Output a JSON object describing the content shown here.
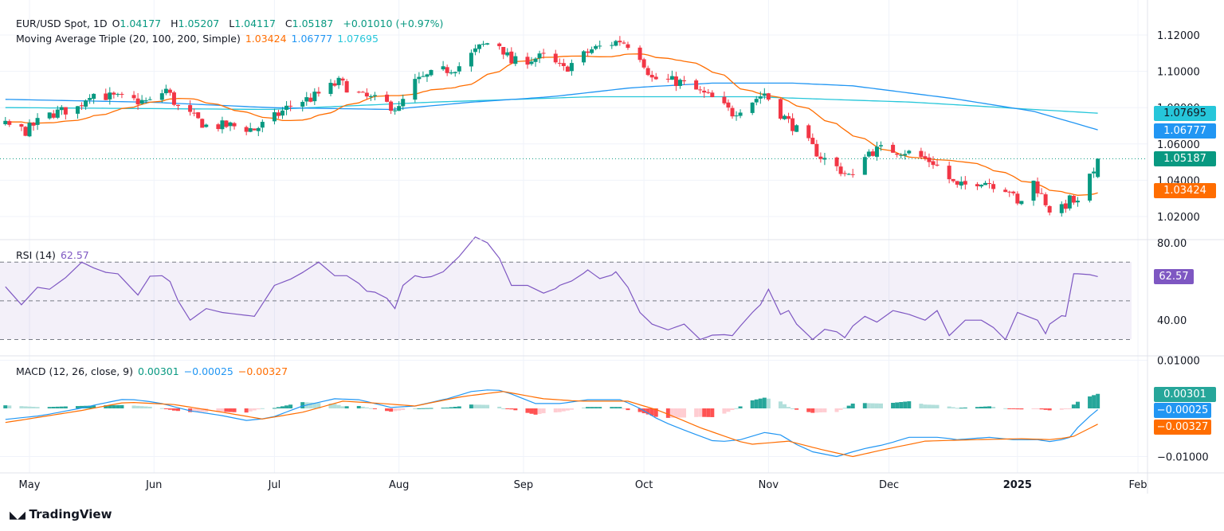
{
  "header": {
    "symbol": "EUR/USD Spot, 1D",
    "o_label": "O",
    "open": "1.04177",
    "h_label": "H",
    "high": "1.05207",
    "l_label": "L",
    "low": "1.04117",
    "c_label": "C",
    "close": "1.05187",
    "change": "+0.01010 (+0.97%)"
  },
  "ma_legend": {
    "title": "Moving Average Triple (20, 100, 200, Simple)",
    "ma20": "1.03424",
    "ma100": "1.06777",
    "ma200": "1.07695"
  },
  "rsi_legend": {
    "title": "RSI (14)",
    "value": "62.57"
  },
  "macd_legend": {
    "title": "MACD (12, 26, close, 9)",
    "hist": "0.00301",
    "macd": "−0.00025",
    "signal": "−0.00327"
  },
  "colors": {
    "up": "#089981",
    "down": "#f23645",
    "ma20": "#ff6d00",
    "ma100": "#2196f3",
    "ma200": "#26c6da",
    "rsi": "#7e57c2",
    "hist_up": "#26a69a",
    "hist_down": "#ff5252"
  },
  "footer": {
    "brand": "TradingView"
  },
  "chart_data": [
    {
      "type": "candlestick",
      "title": "EUR/USD Spot, 1D",
      "x_unit": "calendar days from 2024-05-01",
      "yticks": [
        "1.12000",
        "1.10000",
        "1.08000",
        "1.06000",
        "1.04000",
        "1.02000"
      ],
      "ylim": [
        1.012,
        1.125
      ],
      "xticks": [
        {
          "d": 0,
          "label": "May"
        },
        {
          "d": 31,
          "label": "Jun"
        },
        {
          "d": 61,
          "label": "Jul"
        },
        {
          "d": 92,
          "label": "Aug"
        },
        {
          "d": 123,
          "label": "Sep"
        },
        {
          "d": 153,
          "label": "Oct"
        },
        {
          "d": 184,
          "label": "Nov"
        },
        {
          "d": 214,
          "label": "Dec"
        },
        {
          "d": 246,
          "label": "2025"
        },
        {
          "d": 276,
          "label": "Feb"
        }
      ],
      "close_anchors": [
        [
          -30,
          1.072
        ],
        [
          -5,
          1.07
        ],
        [
          -1,
          1.067
        ],
        [
          2,
          1.072
        ],
        [
          6,
          1.077
        ],
        [
          12,
          1.08
        ],
        [
          15,
          1.088
        ],
        [
          20,
          1.086
        ],
        [
          25,
          1.084
        ],
        [
          30,
          1.083
        ],
        [
          34,
          1.09
        ],
        [
          37,
          1.08
        ],
        [
          44,
          1.07
        ],
        [
          50,
          1.07
        ],
        [
          56,
          1.068
        ],
        [
          60,
          1.073
        ],
        [
          66,
          1.083
        ],
        [
          70,
          1.085
        ],
        [
          77,
          1.094
        ],
        [
          83,
          1.086
        ],
        [
          88,
          1.083
        ],
        [
          92,
          1.079
        ],
        [
          95,
          1.093
        ],
        [
          100,
          1.098
        ],
        [
          107,
          1.103
        ],
        [
          112,
          1.113
        ],
        [
          116,
          1.118
        ],
        [
          120,
          1.105
        ],
        [
          128,
          1.108
        ],
        [
          133,
          1.101
        ],
        [
          140,
          1.112
        ],
        [
          147,
          1.117
        ],
        [
          151,
          1.113
        ],
        [
          155,
          1.096
        ],
        [
          162,
          1.094
        ],
        [
          170,
          1.085
        ],
        [
          175,
          1.077
        ],
        [
          183,
          1.088
        ],
        [
          186,
          1.079
        ],
        [
          190,
          1.07
        ],
        [
          197,
          1.053
        ],
        [
          205,
          1.041
        ],
        [
          208,
          1.055
        ],
        [
          212,
          1.057
        ],
        [
          218,
          1.056
        ],
        [
          225,
          1.05
        ],
        [
          231,
          1.036
        ],
        [
          237,
          1.04
        ],
        [
          244,
          1.035
        ],
        [
          246,
          1.026
        ],
        [
          250,
          1.039
        ],
        [
          254,
          1.024
        ],
        [
          257,
          1.024
        ],
        [
          259,
          1.029
        ],
        [
          261,
          1.027
        ],
        [
          263,
          1.041
        ],
        [
          265,
          1.042
        ],
        [
          266,
          1.05187
        ]
      ],
      "last_candle": {
        "open": 1.04177,
        "high": 1.05207,
        "low": 1.04117,
        "close": 1.05187
      },
      "ma100": [
        [
          -5,
          1.0845
        ],
        [
          30,
          1.083
        ],
        [
          60,
          1.08
        ],
        [
          90,
          1.079
        ],
        [
          110,
          1.083
        ],
        [
          130,
          1.086
        ],
        [
          150,
          1.091
        ],
        [
          170,
          1.0935
        ],
        [
          190,
          1.0935
        ],
        [
          205,
          1.092
        ],
        [
          230,
          1.085
        ],
        [
          250,
          1.078
        ],
        [
          266,
          1.06777
        ]
      ],
      "ma200": [
        [
          -5,
          1.08
        ],
        [
          60,
          1.079
        ],
        [
          100,
          1.083
        ],
        [
          140,
          1.086
        ],
        [
          180,
          1.086
        ],
        [
          220,
          1.083
        ],
        [
          250,
          1.079
        ],
        [
          266,
          1.07695
        ]
      ],
      "ma20_last": 1.03424
    },
    {
      "type": "line",
      "title": "RSI (14)",
      "yticks": [
        "80.00",
        "40.00"
      ],
      "bands": [
        70,
        50,
        30
      ],
      "ylim": [
        20,
        80
      ],
      "points": [
        [
          -5,
          55
        ],
        [
          -2,
          48
        ],
        [
          2,
          57
        ],
        [
          5,
          56
        ],
        [
          9,
          62
        ],
        [
          13,
          70
        ],
        [
          18,
          65
        ],
        [
          22,
          64
        ],
        [
          27,
          53
        ],
        [
          31,
          66
        ],
        [
          35,
          60
        ],
        [
          38,
          45
        ],
        [
          40,
          40
        ],
        [
          44,
          46
        ],
        [
          48,
          44
        ],
        [
          52,
          43
        ],
        [
          56,
          42
        ],
        [
          61,
          58
        ],
        [
          66,
          62
        ],
        [
          72,
          70
        ],
        [
          76,
          63
        ],
        [
          80,
          63
        ],
        [
          84,
          55
        ],
        [
          88,
          54
        ],
        [
          91,
          46
        ],
        [
          94,
          64
        ],
        [
          98,
          62
        ],
        [
          102,
          63
        ],
        [
          107,
          73
        ],
        [
          111,
          83
        ],
        [
          114,
          80
        ],
        [
          117,
          72
        ],
        [
          120,
          58
        ],
        [
          124,
          58
        ],
        [
          129,
          53
        ],
        [
          132,
          58
        ],
        [
          136,
          61
        ],
        [
          139,
          66
        ],
        [
          143,
          60
        ],
        [
          146,
          65
        ],
        [
          149,
          57
        ],
        [
          151,
          46
        ],
        [
          155,
          38
        ],
        [
          159,
          35
        ],
        [
          163,
          38
        ],
        [
          167,
          30
        ],
        [
          171,
          33
        ],
        [
          175,
          32
        ],
        [
          179,
          42
        ],
        [
          182,
          48
        ],
        [
          185,
          60
        ],
        [
          186,
          42
        ],
        [
          189,
          45
        ],
        [
          191,
          38
        ],
        [
          195,
          30
        ],
        [
          199,
          37
        ],
        [
          203,
          31
        ],
        [
          207,
          43
        ],
        [
          211,
          39
        ],
        [
          215,
          45
        ],
        [
          219,
          43
        ],
        [
          223,
          40
        ],
        [
          226,
          45
        ],
        [
          229,
          32
        ],
        [
          233,
          40
        ],
        [
          237,
          40
        ],
        [
          241,
          35
        ],
        [
          243,
          30
        ],
        [
          246,
          44
        ],
        [
          251,
          40
        ],
        [
          253,
          33
        ],
        [
          255,
          43
        ],
        [
          258,
          42
        ],
        [
          260,
          64
        ],
        [
          263,
          64
        ],
        [
          266,
          62.57
        ]
      ]
    },
    {
      "type": "line",
      "title": "MACD (12, 26, close, 9)",
      "yticks": [
        "0.01000",
        "-0.01000"
      ],
      "ylim": [
        -0.012,
        0.012
      ],
      "macd": [
        [
          -5,
          -0.0022
        ],
        [
          3,
          -0.0015
        ],
        [
          12.5,
          0
        ],
        [
          18,
          0.001
        ],
        [
          24,
          0.002
        ],
        [
          32,
          0.0012
        ],
        [
          40,
          -0.0005
        ],
        [
          48,
          -0.0015
        ],
        [
          54,
          -0.0025
        ],
        [
          60,
          -0.002
        ],
        [
          68,
          0.0005
        ],
        [
          76,
          0.002
        ],
        [
          82,
          0.0018
        ],
        [
          90,
          0.0002
        ],
        [
          96,
          0.0005
        ],
        [
          104,
          0.002
        ],
        [
          110,
          0.0035
        ],
        [
          116,
          0.004
        ],
        [
          120,
          0.003
        ],
        [
          126,
          0.001
        ],
        [
          132,
          0.001
        ],
        [
          139,
          0.0018
        ],
        [
          147,
          0.0018
        ],
        [
          151,
          0.0005
        ],
        [
          157,
          -0.0025
        ],
        [
          163,
          -0.0045
        ],
        [
          171,
          -0.007
        ],
        [
          177,
          -0.0065
        ],
        [
          183,
          -0.005
        ],
        [
          187,
          -0.0055
        ],
        [
          191,
          -0.0075
        ],
        [
          195,
          -0.009
        ],
        [
          201,
          -0.01
        ],
        [
          207,
          -0.0085
        ],
        [
          213,
          -0.0075
        ],
        [
          219,
          -0.006
        ],
        [
          227,
          -0.006
        ],
        [
          231,
          -0.0065
        ],
        [
          239,
          -0.006
        ],
        [
          245,
          -0.0065
        ],
        [
          251,
          -0.0065
        ],
        [
          255,
          -0.007
        ],
        [
          259,
          -0.006
        ],
        [
          262,
          -0.003
        ],
        [
          266,
          -0.00025
        ]
      ],
      "signal": [
        [
          -5,
          -0.0028
        ],
        [
          12.5,
          -0.0005
        ],
        [
          24,
          0.0013
        ],
        [
          36,
          0.0008
        ],
        [
          48,
          -0.0008
        ],
        [
          58,
          -0.0022
        ],
        [
          68,
          -0.0008
        ],
        [
          78,
          0.0015
        ],
        [
          88,
          0.001
        ],
        [
          96,
          0.0005
        ],
        [
          108,
          0.0025
        ],
        [
          118,
          0.0035
        ],
        [
          128,
          0.002
        ],
        [
          137,
          0.0015
        ],
        [
          149,
          0.0015
        ],
        [
          157,
          -0.0005
        ],
        [
          167,
          -0.004
        ],
        [
          179,
          -0.0075
        ],
        [
          189,
          -0.0068
        ],
        [
          197,
          -0.0085
        ],
        [
          205,
          -0.01
        ],
        [
          213,
          -0.0085
        ],
        [
          223,
          -0.0068
        ],
        [
          235,
          -0.0065
        ],
        [
          247,
          -0.0063
        ],
        [
          255,
          -0.0065
        ],
        [
          260,
          -0.0058
        ],
        [
          266,
          -0.00327
        ]
      ],
      "hist_last": 0.00301
    }
  ]
}
